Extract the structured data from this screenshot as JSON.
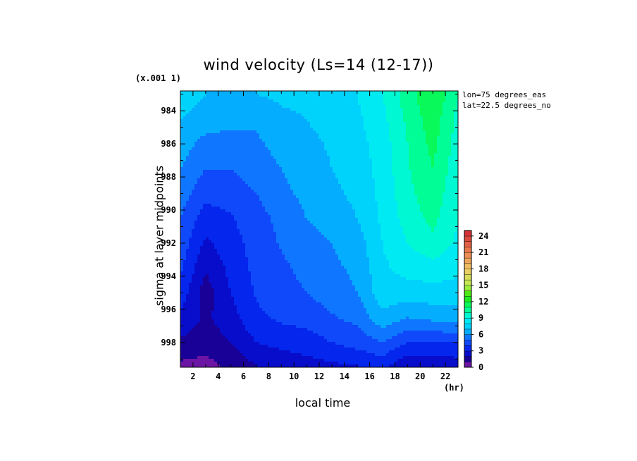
{
  "chart_data": {
    "type": "heatmap",
    "title": "wind velocity (Ls=14 (12-17))",
    "scale_note": "(x.001 1)",
    "xlabel": "local time",
    "x_unit": "(hr)",
    "ylabel": "sigma at layer midpoints",
    "annotations": [
      "lon=75 degrees_eas",
      "lat=22.5 degrees_no"
    ],
    "x": [
      1,
      3,
      5,
      7,
      9,
      11,
      13,
      15,
      17,
      19,
      21,
      23
    ],
    "y": [
      983,
      984.5,
      986,
      987.5,
      989,
      990.5,
      992,
      993.5,
      995,
      996.5,
      998,
      999.4
    ],
    "xlim": [
      1,
      23
    ],
    "ylim": [
      999.5,
      982.8
    ],
    "x_ticks": [
      "2",
      "4",
      "6",
      "8",
      "10",
      "12",
      "14",
      "16",
      "18",
      "20",
      "22"
    ],
    "y_ticks": [
      "984",
      "986",
      "988",
      "990",
      "992",
      "994",
      "996",
      "998"
    ],
    "colorbar": {
      "range": [
        0,
        25
      ],
      "step": 1,
      "tick_labels": [
        "0",
        "3",
        "6",
        "9",
        "12",
        "15",
        "18",
        "21",
        "24"
      ]
    },
    "values": [
      [
        7.5,
        7.0,
        6.9,
        7.0,
        7.2,
        7.2,
        7.6,
        8.0,
        9.0,
        10.5,
        12.0,
        10.0
      ],
      [
        7.0,
        6.6,
        6.3,
        6.2,
        6.8,
        7.0,
        7.3,
        7.8,
        8.7,
        10.2,
        11.6,
        9.7
      ],
      [
        6.5,
        5.6,
        5.6,
        5.8,
        6.4,
        6.8,
        7.1,
        7.6,
        8.5,
        10.0,
        11.3,
        9.5
      ],
      [
        6.0,
        5.0,
        5.0,
        5.4,
        6.0,
        6.6,
        7.0,
        7.4,
        8.4,
        9.9,
        11.0,
        9.3
      ],
      [
        5.5,
        4.3,
        4.5,
        5.0,
        5.7,
        6.3,
        6.8,
        7.2,
        8.3,
        9.7,
        10.7,
        9.1
      ],
      [
        5.0,
        3.5,
        3.9,
        4.6,
        5.3,
        6.0,
        6.5,
        7.0,
        8.2,
        9.4,
        10.3,
        9.0
      ],
      [
        4.6,
        2.8,
        3.6,
        4.4,
        5.1,
        5.6,
        6.0,
        6.5,
        8.0,
        9.0,
        9.7,
        8.8
      ],
      [
        4.2,
        2.1,
        3.3,
        4.3,
        4.8,
        5.3,
        5.8,
        6.2,
        7.8,
        8.4,
        8.6,
        8.3
      ],
      [
        3.6,
        1.5,
        3.0,
        4.1,
        4.6,
        5.0,
        5.5,
        6.0,
        7.6,
        7.5,
        7.6,
        7.5
      ],
      [
        2.8,
        1.8,
        2.6,
        3.8,
        4.2,
        4.4,
        4.9,
        5.3,
        6.7,
        6.0,
        6.3,
        6.5
      ],
      [
        1.8,
        1.5,
        2.0,
        3.0,
        3.3,
        3.5,
        4.0,
        4.4,
        5.0,
        4.0,
        4.0,
        4.0
      ],
      [
        0.8,
        0.6,
        1.3,
        2.0,
        2.4,
        2.6,
        2.8,
        3.0,
        3.3,
        2.2,
        2.2,
        2.5
      ]
    ]
  }
}
